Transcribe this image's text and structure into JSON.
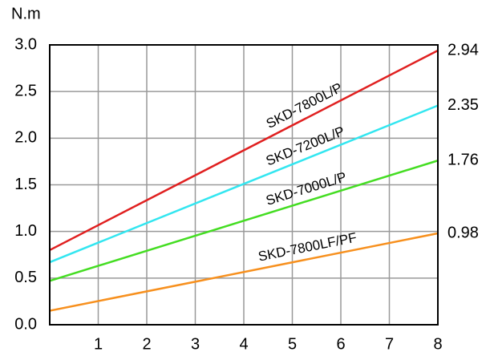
{
  "chart_data": {
    "type": "line",
    "y_label": "N.m",
    "x": [
      0,
      8
    ],
    "xlim": [
      0,
      8
    ],
    "xticks": [
      1,
      2,
      3,
      4,
      5,
      6,
      7,
      8
    ],
    "ylim": [
      0,
      3
    ],
    "yticks": [
      {
        "value": 0,
        "label": "0.0"
      },
      0.5,
      {
        "value": 1,
        "label": "1.0"
      },
      1.5,
      {
        "value": 2,
        "label": "2.0"
      },
      2.5,
      {
        "value": 3,
        "label": "3.0"
      }
    ],
    "y2lim": [
      0,
      3
    ],
    "y2ticks": [
      0.98,
      1.76,
      2.35,
      2.94
    ],
    "grid": true,
    "series": [
      {
        "name": "SKD-7800L/P",
        "color": "#e02020",
        "values": [
          0.8,
          2.94
        ]
      },
      {
        "name": "SKD-7200L/P",
        "color": "#33e6f0",
        "values": [
          0.67,
          2.35
        ]
      },
      {
        "name": "SKD-7000L/P",
        "color": "#44dd22",
        "values": [
          0.47,
          1.76
        ]
      },
      {
        "name": "SKD-7800LF/PF",
        "color": "#f7901e",
        "values": [
          0.15,
          0.98
        ]
      }
    ]
  }
}
